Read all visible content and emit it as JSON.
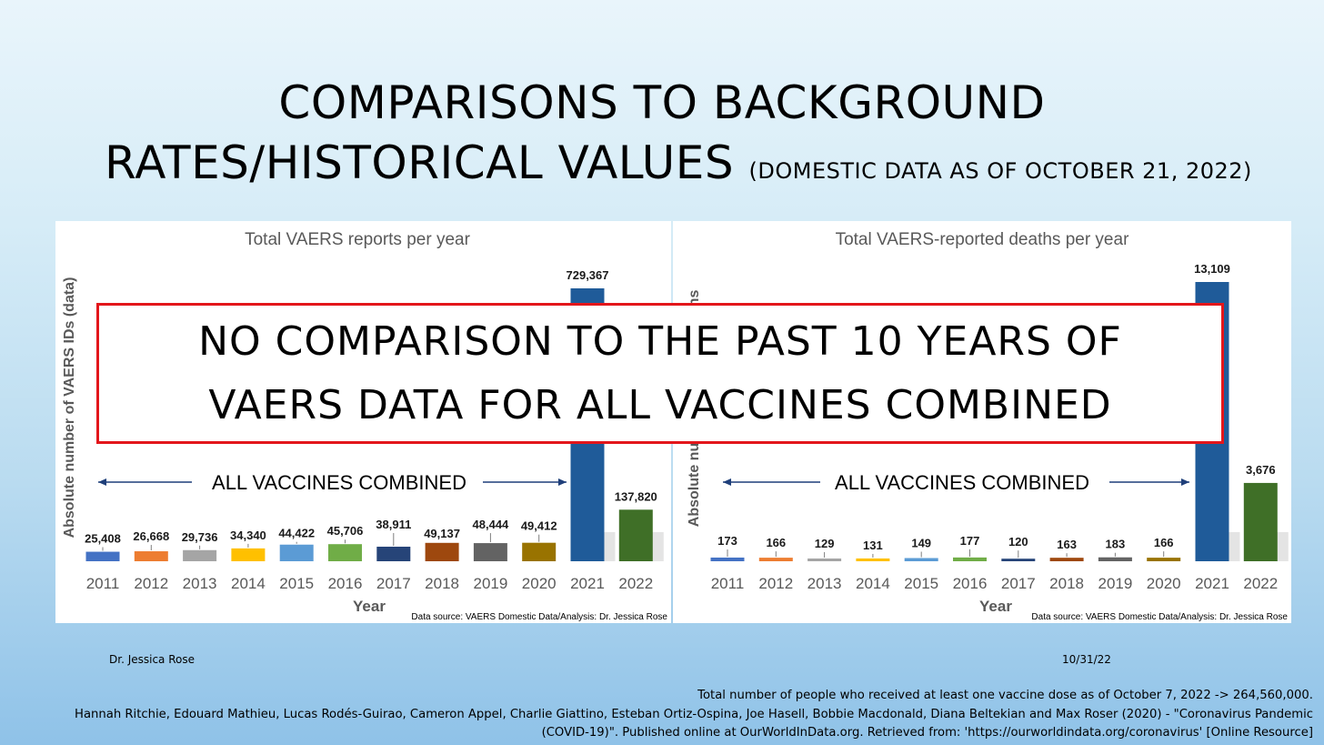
{
  "title": {
    "line1": "COMPARISONS TO BACKGROUND",
    "line2": "RATES/HISTORICAL VALUES",
    "subtitle": "(DOMESTIC DATA AS OF OCTOBER 21, 2022)"
  },
  "overlay": {
    "line1": "NO COMPARISON TO THE PAST 10 YEARS OF",
    "line2": "VAERS DATA FOR ALL VACCINES COMBINED"
  },
  "footer": {
    "author": "Dr. Jessica Rose",
    "date": "10/31/22",
    "source1": "Total number of people who received at least one vaccine dose as of October 7, 2022 -> 264,560,000.",
    "source2": "Hannah Ritchie, Edouard Mathieu, Lucas Rodés-Guirao, Cameron Appel, Charlie Giattino, Esteban Ortiz-Ospina, Joe Hasell, Bobbie Macdonald, Diana Beltekian and Max Roser (2020) - \"Coronavirus Pandemic",
    "source3": "(COVID-19)\". Published online at OurWorldInData.org. Retrieved from: 'https://ourworldindata.org/coronavirus' [Online Resource]"
  },
  "chart_data": [
    {
      "type": "bar",
      "title": "Total VAERS reports per year",
      "xlabel": "Year",
      "ylabel": "Absolute number of VAERS IDs (data)",
      "annotation": "ALL VACCINES COMBINED",
      "source": "Data source: VAERS Domestic Data/Analysis: Dr. Jessica Rose",
      "categories": [
        "2011",
        "2012",
        "2013",
        "2014",
        "2015",
        "2016",
        "2017",
        "2018",
        "2019",
        "2020",
        "2021",
        "2022"
      ],
      "values": [
        25408,
        26668,
        29736,
        34340,
        44422,
        45706,
        38911,
        49137,
        48444,
        49412,
        729367,
        137820
      ],
      "value_labels": [
        "25,408",
        "26,668",
        "29,736",
        "34,340",
        "44,422",
        "45,706",
        "38,911",
        "49,137",
        "48,444",
        "49,412",
        "729,367",
        "137,820"
      ],
      "colors": [
        "#4472c4",
        "#ed7d31",
        "#a5a5a5",
        "#ffc000",
        "#5b9bd5",
        "#70ad47",
        "#264478",
        "#9e480e",
        "#636363",
        "#997300",
        "#1f5b99",
        "#3f6f27"
      ],
      "ylim": [
        0,
        729367
      ],
      "grid": false
    },
    {
      "type": "bar",
      "title": "Total VAERS-reported deaths per year",
      "xlabel": "Year",
      "ylabel": "Absolute nu",
      "ylabel_fragment": "ns",
      "annotation": "ALL VACCINES COMBINED",
      "source": "Data source: VAERS Domestic Data/Analysis: Dr. Jessica Rose",
      "categories": [
        "2011",
        "2012",
        "2013",
        "2014",
        "2015",
        "2016",
        "2017",
        "2018",
        "2019",
        "2020",
        "2021",
        "2022"
      ],
      "values": [
        173,
        166,
        129,
        131,
        149,
        177,
        120,
        163,
        183,
        166,
        13109,
        3676
      ],
      "value_labels": [
        "173",
        "166",
        "129",
        "131",
        "149",
        "177",
        "120",
        "163",
        "183",
        "166",
        "13,109",
        "3,676"
      ],
      "colors": [
        "#4472c4",
        "#ed7d31",
        "#a5a5a5",
        "#ffc000",
        "#5b9bd5",
        "#70ad47",
        "#264478",
        "#9e480e",
        "#636363",
        "#997300",
        "#1f5b99",
        "#3f6f27"
      ],
      "ylim": [
        0,
        13109
      ],
      "grid": false
    }
  ]
}
